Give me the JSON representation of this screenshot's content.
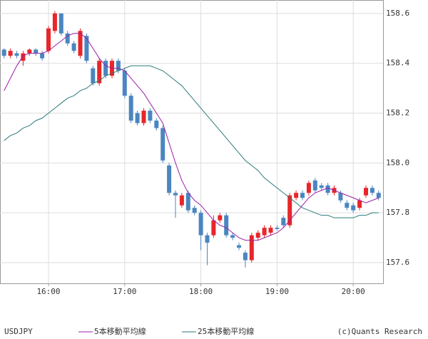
{
  "chart_data": {
    "type": "candlestick",
    "symbol": "USDJPY",
    "credit": "(c)Quants Research",
    "categories": [
      null,
      null,
      null,
      null,
      null,
      null,
      null,
      "16:00",
      null,
      null,
      null,
      null,
      null,
      null,
      null,
      null,
      null,
      null,
      null,
      "17:00",
      null,
      null,
      null,
      null,
      null,
      null,
      null,
      null,
      null,
      null,
      null,
      "18:00",
      null,
      null,
      null,
      null,
      null,
      null,
      null,
      null,
      null,
      null,
      null,
      "19:00",
      null,
      null,
      null,
      null,
      null,
      null,
      null,
      null,
      null,
      null,
      null,
      "20:00",
      null,
      null,
      null,
      null
    ],
    "candles": {
      "up_color": "#e8262a",
      "down_color": "#4a86c0",
      "open": [
        158.455,
        158.43,
        158.44,
        158.41,
        158.44,
        158.455,
        158.44,
        158.45,
        158.53,
        158.6,
        158.52,
        158.48,
        158.43,
        158.51,
        158.38,
        158.32,
        158.41,
        158.35,
        158.41,
        158.37,
        158.27,
        158.2,
        158.16,
        158.21,
        158.17,
        158.14,
        157.99,
        157.88,
        157.83,
        157.88,
        157.82,
        157.8,
        157.71,
        157.71,
        157.77,
        157.79,
        157.71,
        157.67,
        157.64,
        157.61,
        157.7,
        157.71,
        157.72,
        157.74,
        157.78,
        157.75,
        157.86,
        157.88,
        157.88,
        157.93,
        157.91,
        157.91,
        157.88,
        157.88,
        157.84,
        157.83,
        157.82,
        157.87,
        157.9,
        157.88
      ],
      "high": [
        158.46,
        158.46,
        158.45,
        158.45,
        158.46,
        158.46,
        158.45,
        158.55,
        158.61,
        158.6,
        158.53,
        158.49,
        158.54,
        158.52,
        158.39,
        158.42,
        158.42,
        158.42,
        158.42,
        158.38,
        158.28,
        158.21,
        158.22,
        158.22,
        158.18,
        158.15,
        158.0,
        157.89,
        157.88,
        157.89,
        157.83,
        157.81,
        157.72,
        157.79,
        157.8,
        157.8,
        157.72,
        157.68,
        157.65,
        157.72,
        157.73,
        157.75,
        157.75,
        157.75,
        157.79,
        157.88,
        157.89,
        157.89,
        157.93,
        157.94,
        157.92,
        157.92,
        157.91,
        157.89,
        157.85,
        157.84,
        157.86,
        157.91,
        157.91,
        157.89
      ],
      "low": [
        158.42,
        158.42,
        158.42,
        158.39,
        158.43,
        158.43,
        158.41,
        158.44,
        158.52,
        158.51,
        158.47,
        158.44,
        158.42,
        158.4,
        158.31,
        158.31,
        158.34,
        158.34,
        158.36,
        158.26,
        158.16,
        158.15,
        158.15,
        158.16,
        158.13,
        158.0,
        157.87,
        157.78,
        157.82,
        157.8,
        157.79,
        157.65,
        157.59,
        157.7,
        157.76,
        157.7,
        157.69,
        157.65,
        157.58,
        157.6,
        157.69,
        157.7,
        157.71,
        157.73,
        157.74,
        157.74,
        157.85,
        157.85,
        157.87,
        157.88,
        157.89,
        157.87,
        157.87,
        157.84,
        157.81,
        157.8,
        157.81,
        157.86,
        157.87,
        157.85
      ],
      "close": [
        158.43,
        158.45,
        158.43,
        158.44,
        158.455,
        158.44,
        158.42,
        158.54,
        158.6,
        158.52,
        158.48,
        158.45,
        158.53,
        158.41,
        158.32,
        158.41,
        158.35,
        158.41,
        158.37,
        158.27,
        158.17,
        158.16,
        158.21,
        158.17,
        158.14,
        158.01,
        157.88,
        157.87,
        157.87,
        157.81,
        157.8,
        157.71,
        157.68,
        157.77,
        157.79,
        157.71,
        157.7,
        157.66,
        157.61,
        157.71,
        157.72,
        157.74,
        157.74,
        157.735,
        157.75,
        157.87,
        157.88,
        157.86,
        157.92,
        157.89,
        157.9,
        157.88,
        157.9,
        157.85,
        157.82,
        157.81,
        157.85,
        157.9,
        157.88,
        157.86
      ]
    },
    "series": [
      {
        "name": "5本移動平均線",
        "color": "#9b1fa8",
        "values": [
          158.29,
          158.34,
          158.39,
          158.43,
          158.44,
          158.44,
          158.44,
          158.45,
          158.47,
          158.49,
          158.51,
          158.52,
          158.52,
          158.5,
          158.46,
          158.42,
          158.39,
          158.38,
          158.38,
          158.37,
          158.34,
          158.31,
          158.28,
          158.24,
          158.2,
          158.16,
          158.08,
          158.0,
          157.93,
          157.88,
          157.85,
          157.83,
          157.8,
          157.77,
          157.75,
          157.74,
          157.72,
          157.7,
          157.69,
          157.69,
          157.69,
          157.7,
          157.71,
          157.72,
          157.74,
          157.77,
          157.8,
          157.83,
          157.86,
          157.88,
          157.89,
          157.9,
          157.89,
          157.88,
          157.87,
          157.86,
          157.85,
          157.84,
          157.85,
          157.86
        ]
      },
      {
        "name": "25本移動平均線",
        "color": "#2a7a78",
        "values": [
          158.09,
          158.11,
          158.12,
          158.14,
          158.15,
          158.17,
          158.18,
          158.2,
          158.22,
          158.24,
          158.26,
          158.27,
          158.29,
          158.3,
          158.32,
          158.33,
          158.35,
          158.36,
          158.37,
          158.38,
          158.39,
          158.39,
          158.39,
          158.39,
          158.38,
          158.37,
          158.35,
          158.33,
          158.31,
          158.28,
          158.25,
          158.22,
          158.19,
          158.16,
          158.13,
          158.1,
          158.07,
          158.04,
          158.01,
          157.99,
          157.97,
          157.94,
          157.92,
          157.9,
          157.88,
          157.86,
          157.84,
          157.82,
          157.81,
          157.8,
          157.79,
          157.79,
          157.78,
          157.78,
          157.78,
          157.78,
          157.79,
          157.79,
          157.8,
          157.8
        ]
      }
    ],
    "ylim": [
      157.517,
      158.654
    ],
    "yticks": [
      157.6,
      157.8,
      {
        "value": 158,
        "label": "158.0"
      },
      158.2,
      158.4,
      158.6
    ],
    "grid": true
  }
}
